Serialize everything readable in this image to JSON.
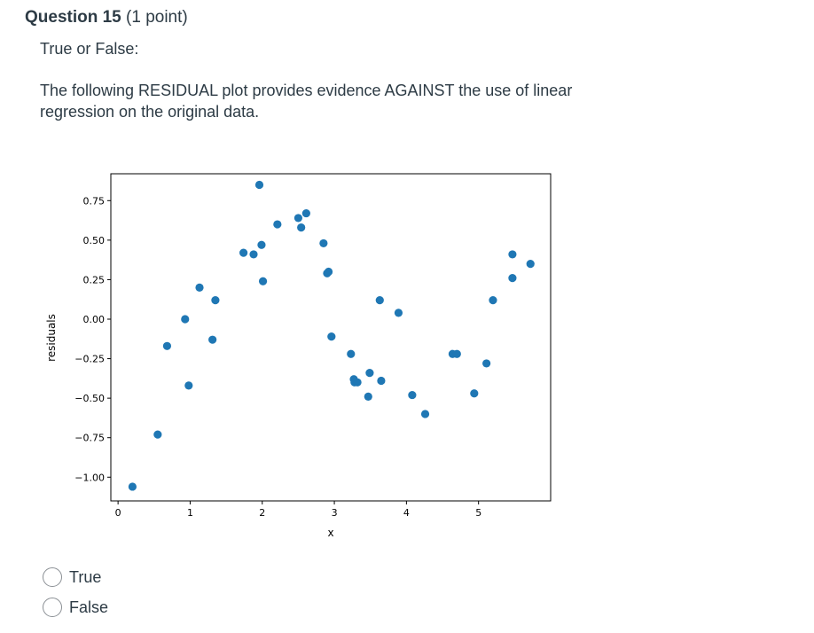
{
  "question": {
    "title": "Question 15",
    "points": "(1 point)",
    "type_label": "True or False:",
    "text": "The following RESIDUAL plot provides evidence AGAINST the use of linear regression on the original data."
  },
  "answers": [
    {
      "label": "True"
    },
    {
      "label": "False"
    }
  ],
  "colors": {
    "point": "#1f77b4",
    "text": "#2d3b45"
  },
  "chart_data": {
    "type": "scatter",
    "title": "",
    "xlabel": "x",
    "ylabel": "residuals",
    "xlim": [
      -0.1,
      6.0
    ],
    "ylim": [
      -1.15,
      0.92
    ],
    "xticks": [
      0,
      1,
      2,
      3,
      4,
      5
    ],
    "xtick_labels": [
      "0",
      "1",
      "2",
      "3",
      "4",
      "5"
    ],
    "yticks": [
      0.75,
      0.5,
      0.25,
      0.0,
      -0.25,
      -0.5,
      -0.75,
      -1.0
    ],
    "ytick_labels": [
      "0.75",
      "0.50",
      "0.25",
      "0.00",
      "−0.25",
      "−0.50",
      "−0.75",
      "−1.00"
    ],
    "grid": false,
    "points": [
      {
        "x": 0.2,
        "y": -1.06
      },
      {
        "x": 0.55,
        "y": -0.73
      },
      {
        "x": 0.68,
        "y": -0.17
      },
      {
        "x": 0.93,
        "y": 0.0
      },
      {
        "x": 0.98,
        "y": -0.42
      },
      {
        "x": 1.13,
        "y": 0.2
      },
      {
        "x": 1.31,
        "y": -0.13
      },
      {
        "x": 1.35,
        "y": 0.12
      },
      {
        "x": 1.74,
        "y": 0.42
      },
      {
        "x": 1.88,
        "y": 0.41
      },
      {
        "x": 1.96,
        "y": 0.85
      },
      {
        "x": 1.99,
        "y": 0.47
      },
      {
        "x": 2.01,
        "y": 0.24
      },
      {
        "x": 2.21,
        "y": 0.6
      },
      {
        "x": 2.5,
        "y": 0.64
      },
      {
        "x": 2.54,
        "y": 0.58
      },
      {
        "x": 2.61,
        "y": 0.67
      },
      {
        "x": 2.85,
        "y": 0.48
      },
      {
        "x": 2.9,
        "y": 0.29
      },
      {
        "x": 2.92,
        "y": 0.3
      },
      {
        "x": 2.96,
        "y": -0.11
      },
      {
        "x": 3.23,
        "y": -0.22
      },
      {
        "x": 3.27,
        "y": -0.38
      },
      {
        "x": 3.28,
        "y": -0.4
      },
      {
        "x": 3.32,
        "y": -0.4
      },
      {
        "x": 3.47,
        "y": -0.49
      },
      {
        "x": 3.49,
        "y": -0.34
      },
      {
        "x": 3.63,
        "y": 0.12
      },
      {
        "x": 3.65,
        "y": -0.39
      },
      {
        "x": 3.89,
        "y": 0.04
      },
      {
        "x": 4.08,
        "y": -0.48
      },
      {
        "x": 4.26,
        "y": -0.6
      },
      {
        "x": 4.64,
        "y": -0.22
      },
      {
        "x": 4.7,
        "y": -0.22
      },
      {
        "x": 4.94,
        "y": -0.47
      },
      {
        "x": 5.11,
        "y": -0.28
      },
      {
        "x": 5.2,
        "y": 0.12
      },
      {
        "x": 5.47,
        "y": 0.41
      },
      {
        "x": 5.47,
        "y": 0.26
      },
      {
        "x": 5.72,
        "y": 0.35
      }
    ]
  }
}
